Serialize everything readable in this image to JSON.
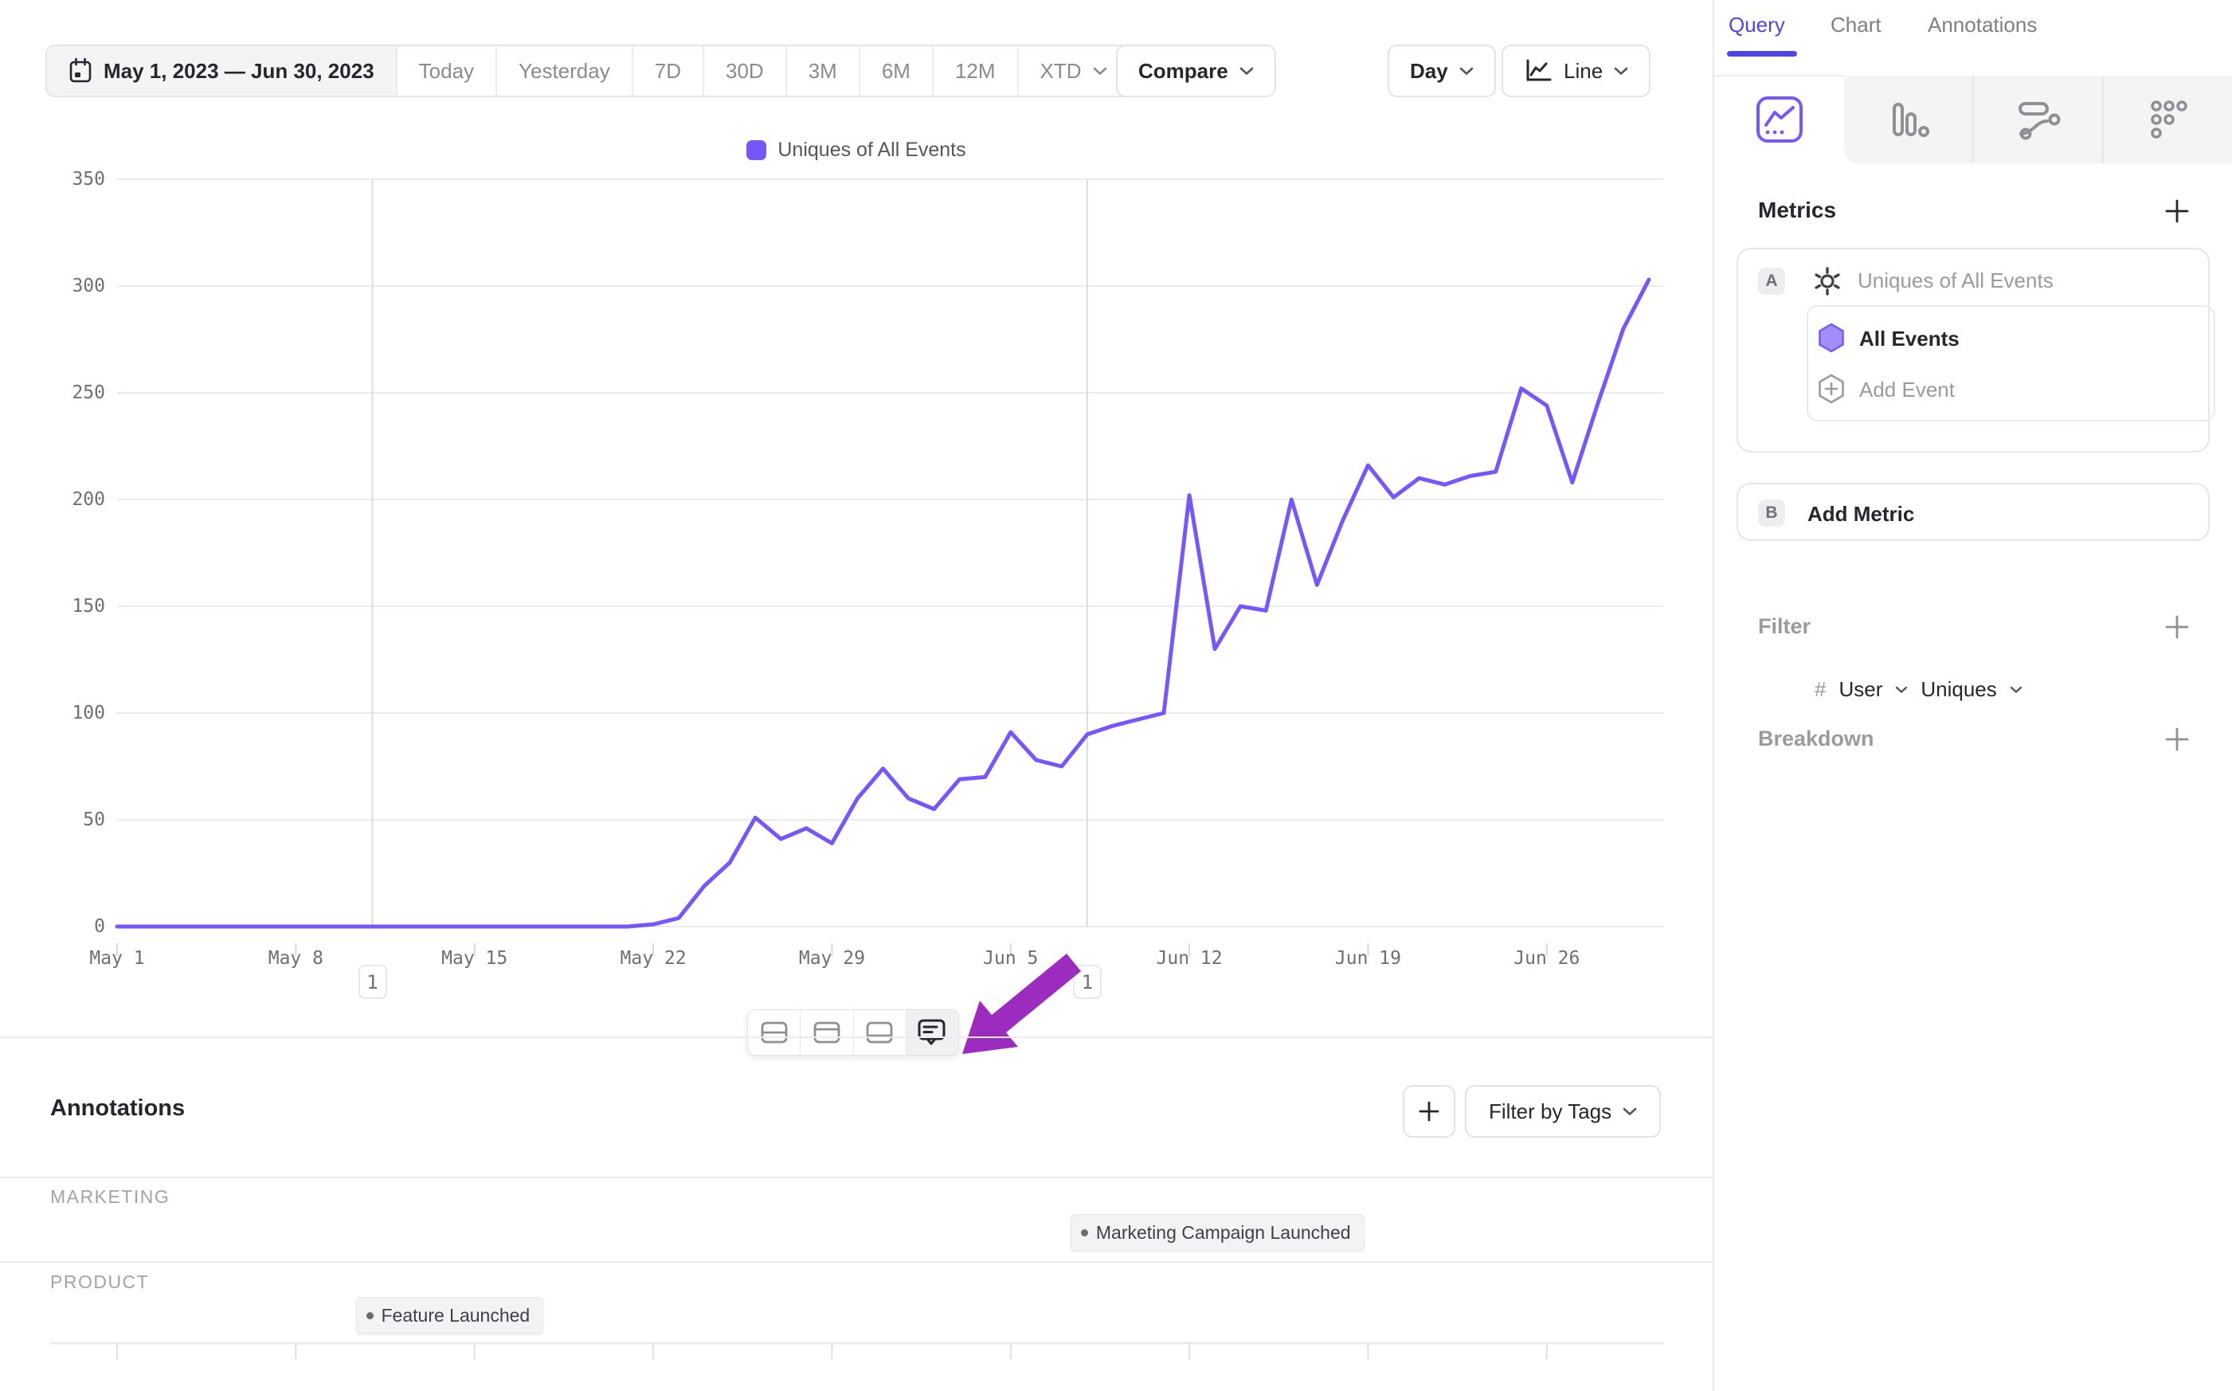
{
  "toolbar": {
    "date_range": "May 1, 2023 — Jun 30, 2023",
    "presets": [
      "Today",
      "Yesterday",
      "7D",
      "30D",
      "3M",
      "6M",
      "12M"
    ],
    "xtd_label": "XTD",
    "compare_label": "Compare",
    "granularity_label": "Day",
    "chart_type_label": "Line"
  },
  "chart_data": {
    "type": "line",
    "title": "",
    "legend": [
      "Uniques of All Events"
    ],
    "legend_position": "top-center",
    "grid": "horizontal",
    "x_start": "2023-05-01",
    "x_end": "2023-06-30",
    "granularity": "day",
    "x_tick_labels": [
      "May 1",
      "May 8",
      "May 15",
      "May 22",
      "May 29",
      "Jun 5",
      "Jun 12",
      "Jun 19",
      "Jun 26"
    ],
    "y_ticks": [
      0,
      50,
      100,
      150,
      200,
      250,
      300,
      350
    ],
    "ylim": [
      0,
      350
    ],
    "series": [
      {
        "name": "Uniques of All Events",
        "color": "#7856ff",
        "values": [
          0,
          0,
          0,
          0,
          0,
          0,
          0,
          0,
          0,
          0,
          0,
          0,
          0,
          0,
          0,
          0,
          0,
          0,
          0,
          0,
          0,
          1,
          4,
          19,
          30,
          51,
          41,
          46,
          39,
          60,
          74,
          60,
          55,
          69,
          70,
          91,
          78,
          75,
          90,
          94,
          97,
          100,
          202,
          130,
          150,
          148,
          200,
          160,
          190,
          216,
          201,
          210,
          207,
          211,
          213,
          252,
          244,
          208,
          245,
          280,
          303
        ]
      }
    ],
    "annotation_markers": [
      {
        "day_index": 10,
        "date_label": "May 11",
        "count": "1"
      },
      {
        "day_index": 38,
        "date_label": "Jun 8",
        "count": "1"
      }
    ]
  },
  "chart_footer_toolbar": {
    "icons": [
      "split-horizontal-layout",
      "top-panel-layout",
      "bottom-panel-layout",
      "annotation-comment"
    ],
    "active": "annotation-comment"
  },
  "cursor_arrow": {
    "color": "#9c2bbf",
    "points_at": "annotation-comment-button"
  },
  "annotations_panel": {
    "title": "Annotations",
    "filter_by_tags_label": "Filter by Tags",
    "groups": [
      {
        "name": "MARKETING",
        "items": [
          {
            "label": "Marketing Campaign Launched",
            "day_index": 38
          }
        ]
      },
      {
        "name": "PRODUCT",
        "items": [
          {
            "label": "Feature Launched",
            "day_index": 10
          }
        ]
      }
    ]
  },
  "sidebar": {
    "tabs": [
      {
        "label": "Query",
        "active": true
      },
      {
        "label": "Chart",
        "active": false
      },
      {
        "label": "Annotations",
        "active": false
      }
    ],
    "chart_types": [
      "line-chart",
      "bar-chart",
      "flow-chart",
      "retention-grid"
    ],
    "active_chart_type": "line-chart",
    "metrics": {
      "title": "Metrics",
      "rows": [
        {
          "badge": "A",
          "label": "Uniques of All Events",
          "events": [
            {
              "name": "All Events"
            }
          ],
          "add_event_label": "Add Event",
          "aggregation": {
            "prefix": "#",
            "entity": "User",
            "function": "Uniques"
          }
        },
        {
          "badge": "B",
          "label": "Add Metric"
        }
      ]
    },
    "filter": {
      "label": "Filter"
    },
    "breakdown": {
      "label": "Breakdown"
    }
  }
}
